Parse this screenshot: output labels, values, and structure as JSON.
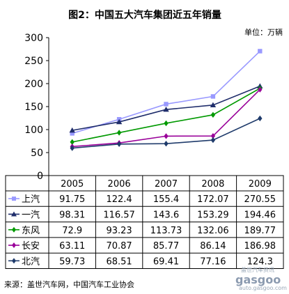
{
  "chart_data": {
    "type": "line",
    "title": "图2：中国五大汽车集团近五年销量",
    "unit_label": "单位：万辆",
    "categories": [
      "2005",
      "2006",
      "2007",
      "2008",
      "2009"
    ],
    "ylim": [
      0,
      300
    ],
    "yticks": [
      0,
      50,
      100,
      150,
      200,
      250,
      300
    ],
    "grid": false,
    "legend": "table-below",
    "series": [
      {
        "name": "上汽",
        "values": [
          91.75,
          122.4,
          155.4,
          172.07,
          270.55
        ],
        "color": "#9999ff",
        "marker": "square"
      },
      {
        "name": "一汽",
        "values": [
          98.31,
          116.57,
          143.6,
          153.29,
          194.46
        ],
        "color": "#1f2d6b",
        "marker": "triangle"
      },
      {
        "name": "东风",
        "values": [
          72.9,
          93.23,
          113.73,
          132.06,
          189.77
        ],
        "color": "#009900",
        "marker": "diamond"
      },
      {
        "name": "长安",
        "values": [
          63.11,
          70.87,
          85.77,
          86.14,
          186.98
        ],
        "color": "#990099",
        "marker": "diamond"
      },
      {
        "name": "北汽",
        "values": [
          59.73,
          68.51,
          69.41,
          77.16,
          124.3
        ],
        "color": "#1f3b6b",
        "marker": "diamond"
      }
    ],
    "table_values": [
      [
        "91.75",
        "122.4",
        "155.4",
        "172.07",
        "270.55"
      ],
      [
        "98.31",
        "116.57",
        "143.6",
        "153.29",
        "194.46"
      ],
      [
        "72.9",
        "93.23",
        "113.73",
        "132.06",
        "189.77"
      ],
      [
        "63.11",
        "70.87",
        "85.77",
        "86.14",
        "186.98"
      ],
      [
        "59.73",
        "68.51",
        "69.41",
        "77.16",
        "124.3"
      ]
    ]
  },
  "source": "来源：盖世汽车网，中国汽车工业协会",
  "watermark": {
    "line1": "盖世汽车资讯",
    "brand": "gasgoo",
    "url": "auto.gasgoo.com"
  }
}
